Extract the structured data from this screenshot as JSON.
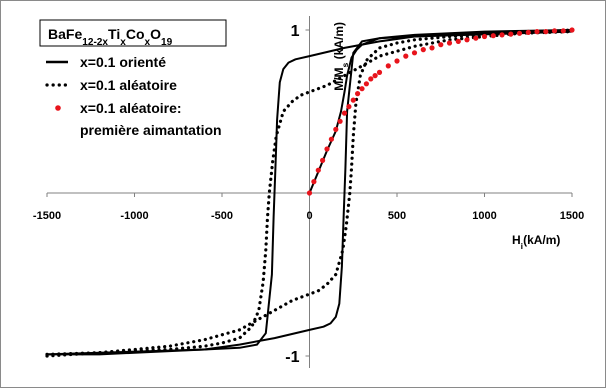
{
  "chart_data": {
    "type": "line",
    "title_parts": [
      {
        "text": "BaFe",
        "sub": false
      },
      {
        "text": "12-2x",
        "sub": true
      },
      {
        "text": "Ti",
        "sub": false
      },
      {
        "text": "x",
        "sub": true
      },
      {
        "text": "Co",
        "sub": false
      },
      {
        "text": "x",
        "sub": true
      },
      {
        "text": "O",
        "sub": false
      },
      {
        "text": "19",
        "sub": true
      }
    ],
    "xlabel_parts": [
      {
        "text": "H",
        "sub": false
      },
      {
        "text": "i",
        "sub": true
      },
      {
        "text": "(kA/m)",
        "sub": false
      }
    ],
    "ylabel_parts": [
      {
        "text": "M/M",
        "sub": false
      },
      {
        "text": "s",
        "sub": true
      },
      {
        "text": " (kA/m)",
        "sub": false
      }
    ],
    "xlim": [
      -1500,
      1500
    ],
    "ylim": [
      -1,
      1
    ],
    "x_ticks": [
      -1500,
      -1000,
      -500,
      0,
      500,
      1000,
      1500
    ],
    "y_ticks": [
      1,
      -1
    ],
    "x_tick_labels": [
      "-1500",
      "-1000",
      "-500",
      "0",
      "500",
      "1000",
      "1500"
    ],
    "y_tick_labels": [
      "1",
      "-1"
    ],
    "grid": false,
    "legend_position": "top-left",
    "series": [
      {
        "name": "x=0.1 orienté",
        "style": "solid",
        "color": "#000000",
        "upper_branch": {
          "x": [
            -1500,
            -1200,
            -900,
            -600,
            -400,
            -300,
            -250,
            -215,
            -205,
            -200,
            -195,
            -185,
            -170,
            -150,
            -120,
            -80,
            0,
            200,
            400,
            600,
            800,
            1000,
            1200,
            1500
          ],
          "y": [
            -0.99,
            -0.98,
            -0.97,
            -0.96,
            -0.95,
            -0.93,
            -0.86,
            -0.5,
            -0.15,
            0,
            0.15,
            0.45,
            0.68,
            0.76,
            0.8,
            0.82,
            0.84,
            0.89,
            0.93,
            0.96,
            0.97,
            0.98,
            0.99,
            1
          ]
        },
        "lower_branch": {
          "x": [
            -1500,
            -1200,
            -1000,
            -800,
            -600,
            -400,
            -200,
            0,
            80,
            120,
            150,
            170,
            185,
            195,
            200,
            205,
            215,
            250,
            300,
            400,
            600,
            900,
            1200,
            1500
          ],
          "y": [
            -0.99,
            -0.99,
            -0.98,
            -0.97,
            -0.96,
            -0.93,
            -0.89,
            -0.84,
            -0.82,
            -0.8,
            -0.76,
            -0.68,
            -0.45,
            -0.15,
            0,
            0.15,
            0.5,
            0.86,
            0.93,
            0.95,
            0.96,
            0.97,
            0.98,
            0.99
          ]
        },
        "initial_curve": {
          "x": [
            0,
            50,
            100,
            150,
            180,
            200,
            215,
            240,
            270,
            300,
            350,
            400,
            500,
            600,
            800,
            1000,
            1500
          ],
          "y": [
            0,
            0.13,
            0.26,
            0.38,
            0.5,
            0.62,
            0.72,
            0.83,
            0.88,
            0.91,
            0.93,
            0.95,
            0.96,
            0.97,
            0.98,
            0.99,
            1
          ]
        }
      },
      {
        "name": "x=0.1 aléatoire",
        "style": "dotted",
        "color": "#000000",
        "upper_branch": {
          "x": [
            -1500,
            -1200,
            -1000,
            -800,
            -600,
            -500,
            -400,
            -330,
            -290,
            -265,
            -250,
            -240,
            -230,
            -210,
            -190,
            -150,
            -100,
            -50,
            0,
            100,
            200,
            300,
            400,
            600,
            800,
            1000,
            1200,
            1500
          ],
          "y": [
            -0.99,
            -0.98,
            -0.97,
            -0.96,
            -0.94,
            -0.92,
            -0.89,
            -0.82,
            -0.72,
            -0.55,
            -0.35,
            -0.15,
            0,
            0.2,
            0.35,
            0.5,
            0.56,
            0.6,
            0.62,
            0.66,
            0.72,
            0.78,
            0.84,
            0.9,
            0.94,
            0.96,
            0.98,
            1
          ]
        },
        "lower_branch": {
          "x": [
            -1500,
            -1200,
            -1000,
            -800,
            -600,
            -400,
            -300,
            -200,
            -100,
            0,
            50,
            100,
            150,
            190,
            210,
            230,
            240,
            250,
            265,
            290,
            330,
            400,
            500,
            600,
            800,
            1000,
            1200,
            1500
          ],
          "y": [
            -1,
            -0.98,
            -0.96,
            -0.94,
            -0.9,
            -0.84,
            -0.78,
            -0.72,
            -0.66,
            -0.62,
            -0.6,
            -0.56,
            -0.5,
            -0.35,
            -0.2,
            0,
            0.15,
            0.35,
            0.55,
            0.72,
            0.82,
            0.89,
            0.92,
            0.94,
            0.96,
            0.97,
            0.98,
            0.99
          ]
        }
      },
      {
        "name_lines": [
          "x=0.1 aléatoire:",
          "première aimantation"
        ],
        "style": "red-dots",
        "color": "#e8141c",
        "x": [
          0,
          25,
          50,
          75,
          100,
          125,
          150,
          175,
          200,
          225,
          250,
          275,
          300,
          325,
          350,
          375,
          400,
          450,
          500,
          550,
          600,
          650,
          700,
          750,
          800,
          850,
          900,
          950,
          1000,
          1050,
          1100,
          1150,
          1200,
          1250,
          1300,
          1350,
          1400,
          1450,
          1500
        ],
        "y": [
          0,
          0.07,
          0.14,
          0.2,
          0.27,
          0.33,
          0.39,
          0.44,
          0.49,
          0.53,
          0.57,
          0.61,
          0.64,
          0.67,
          0.7,
          0.72,
          0.74,
          0.78,
          0.81,
          0.84,
          0.86,
          0.88,
          0.89,
          0.91,
          0.92,
          0.93,
          0.94,
          0.95,
          0.96,
          0.965,
          0.97,
          0.975,
          0.98,
          0.985,
          0.99,
          0.99,
          0.995,
          0.995,
          1
        ]
      }
    ]
  }
}
